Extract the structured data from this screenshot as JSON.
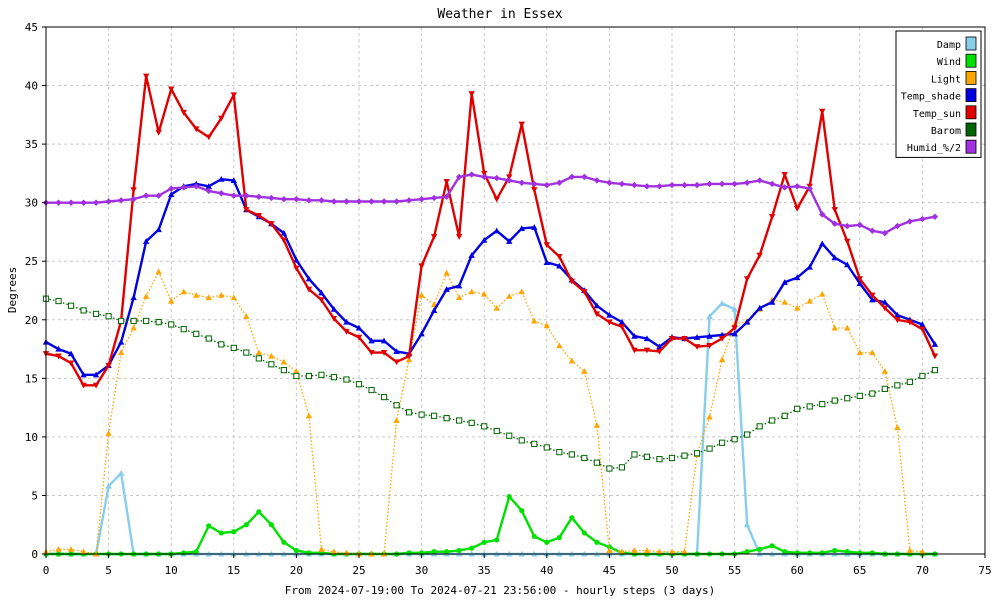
{
  "chart_data": {
    "type": "line",
    "title": "Weather in Essex",
    "xlabel": "From 2024-07-19:00 To 2024-07-21 23:56:00 - hourly steps (3 days)",
    "ylabel": "Degrees",
    "xlim": [
      0,
      75
    ],
    "ylim": [
      0,
      45
    ],
    "xticks": [
      0,
      5,
      10,
      15,
      20,
      25,
      30,
      35,
      40,
      45,
      50,
      55,
      60,
      65,
      70,
      75
    ],
    "yticks": [
      0,
      5,
      10,
      15,
      20,
      25,
      30,
      35,
      40,
      45
    ],
    "grid": true,
    "legend_position": "top-right",
    "series": [
      {
        "name": "Damp",
        "color": "#87ceeb",
        "marker": "triangle",
        "style": "solid",
        "values": [
          0,
          0,
          0,
          0,
          0,
          5.8,
          6.9,
          0,
          0,
          0,
          0,
          0,
          0,
          0,
          0,
          0,
          0,
          0,
          0,
          0,
          0,
          0,
          0,
          0,
          0,
          0,
          0,
          0,
          0,
          0,
          0,
          0,
          0,
          0,
          0,
          0,
          0,
          0,
          0,
          0,
          0,
          0,
          0,
          0,
          0,
          0,
          0,
          0,
          0,
          0,
          0,
          0,
          0,
          20.3,
          21.4,
          20.9,
          2.5,
          0,
          0,
          0,
          0,
          0,
          0,
          0,
          0,
          0,
          0,
          0,
          0,
          0,
          0,
          0
        ]
      },
      {
        "name": "Wind",
        "color": "#00e000",
        "marker": "circle",
        "style": "solid",
        "values": [
          0,
          0,
          0,
          0,
          0,
          0,
          0,
          0,
          0,
          0,
          0,
          0.1,
          0.2,
          2.4,
          1.8,
          1.9,
          2.5,
          3.6,
          2.5,
          1.0,
          0.3,
          0.1,
          0.1,
          0,
          0,
          0,
          0,
          0,
          0,
          0.1,
          0.1,
          0.2,
          0.2,
          0.3,
          0.5,
          1.0,
          1.2,
          4.9,
          3.7,
          1.5,
          1.0,
          1.4,
          3.1,
          1.8,
          1.0,
          0.6,
          0.1,
          0,
          0,
          0,
          0,
          0,
          0,
          0,
          0,
          0,
          0.2,
          0.4,
          0.7,
          0.2,
          0.1,
          0.1,
          0.1,
          0.3,
          0.2,
          0.1,
          0.1,
          0,
          0,
          0,
          0,
          0
        ]
      },
      {
        "name": "Light",
        "color": "#ffa500",
        "marker": "triangle",
        "style": "dotted",
        "values": [
          0.2,
          0.4,
          0.4,
          0.2,
          0,
          10.3,
          17.2,
          19.3,
          22.0,
          24.1,
          21.6,
          22.4,
          22.1,
          21.9,
          22.1,
          21.9,
          20.3,
          17.2,
          16.9,
          16.4,
          15.6,
          11.8,
          0.4,
          0.2,
          0.1,
          0,
          0,
          0,
          11.4,
          16.6,
          22.1,
          21.3,
          24.0,
          21.9,
          22.4,
          22.2,
          21.0,
          22.0,
          22.4,
          19.9,
          19.5,
          17.8,
          16.5,
          15.6,
          11.0,
          0.3,
          0.2,
          0.3,
          0.3,
          0.2,
          0.2,
          0.2,
          8.5,
          11.7,
          16.6,
          19.6,
          19.9,
          20.9,
          21.7,
          21.5,
          21.0,
          21.6,
          22.2,
          19.3,
          19.3,
          17.2,
          17.2,
          15.6,
          10.8,
          0.3,
          0.2
        ]
      },
      {
        "name": "Temp_shade",
        "color": "#0000e0",
        "marker": "triangle",
        "style": "solid",
        "values": [
          18.1,
          17.5,
          17.1,
          15.3,
          15.3,
          16.1,
          18.1,
          21.9,
          26.7,
          27.7,
          30.7,
          31.4,
          31.6,
          31.4,
          32.0,
          31.9,
          29.4,
          28.8,
          28.2,
          27.4,
          25.1,
          23.5,
          22.3,
          20.9,
          19.8,
          19.3,
          18.2,
          18.2,
          17.3,
          17.1,
          18.8,
          20.8,
          22.6,
          22.9,
          25.5,
          26.8,
          27.6,
          26.7,
          27.8,
          27.9,
          24.9,
          24.6,
          23.4,
          22.5,
          21.2,
          20.4,
          19.8,
          18.6,
          18.4,
          17.7,
          18.5,
          18.4,
          18.5,
          18.6,
          18.7,
          18.8,
          19.8,
          21.0,
          21.5,
          23.2,
          23.6,
          24.5,
          26.5,
          25.3,
          24.7,
          23.1,
          21.7,
          21.5,
          20.4,
          20.0,
          19.6,
          17.9
        ]
      },
      {
        "name": "Temp_sun",
        "color": "#e00000",
        "marker": "triangle-down",
        "style": "solid",
        "values": [
          17.1,
          16.9,
          16.3,
          14.4,
          14.4,
          16.1,
          19.9,
          31.1,
          40.8,
          36.0,
          39.7,
          37.7,
          36.3,
          35.6,
          37.2,
          39.2,
          29.4,
          28.9,
          28.2,
          26.8,
          24.4,
          22.6,
          21.7,
          20.1,
          19.0,
          18.5,
          17.2,
          17.2,
          16.4,
          16.9,
          24.6,
          27.1,
          31.8,
          27.1,
          39.3,
          32.5,
          30.3,
          32.2,
          36.7,
          31.1,
          26.4,
          25.4,
          23.3,
          22.4,
          20.5,
          19.8,
          19.4,
          17.4,
          17.4,
          17.3,
          18.4,
          18.4,
          17.7,
          17.8,
          18.4,
          19.3,
          23.5,
          25.5,
          28.8,
          32.4,
          29.5,
          31.4,
          37.8,
          29.4,
          26.7,
          23.5,
          22.1,
          21.0,
          20.0,
          19.8,
          19.2,
          16.9
        ]
      },
      {
        "name": "Barom",
        "color": "#006400",
        "marker": "square",
        "style": "dotted",
        "values": [
          21.8,
          21.6,
          21.2,
          20.8,
          20.5,
          20.3,
          19.9,
          19.9,
          19.9,
          19.8,
          19.6,
          19.2,
          18.8,
          18.4,
          17.9,
          17.6,
          17.2,
          16.7,
          16.2,
          15.7,
          15.2,
          15.2,
          15.3,
          15.1,
          14.9,
          14.5,
          14.0,
          13.4,
          12.7,
          12.1,
          11.9,
          11.8,
          11.6,
          11.4,
          11.2,
          10.9,
          10.5,
          10.1,
          9.7,
          9.4,
          9.1,
          8.7,
          8.5,
          8.2,
          7.8,
          7.3,
          7.4,
          8.5,
          8.3,
          8.1,
          8.2,
          8.4,
          8.6,
          9.0,
          9.5,
          9.8,
          10.2,
          10.9,
          11.4,
          11.8,
          12.4,
          12.6,
          12.8,
          13.1,
          13.3,
          13.5,
          13.7,
          14.1,
          14.4,
          14.7,
          15.2,
          15.7
        ]
      },
      {
        "name": "Humid_%/2",
        "color": "#a030e0",
        "marker": "diamond",
        "style": "solid",
        "values": [
          30.0,
          30.0,
          30.0,
          30.0,
          30.0,
          30.1,
          30.2,
          30.3,
          30.6,
          30.6,
          31.2,
          31.3,
          31.4,
          31.0,
          30.8,
          30.6,
          30.6,
          30.5,
          30.4,
          30.3,
          30.3,
          30.2,
          30.2,
          30.1,
          30.1,
          30.1,
          30.1,
          30.1,
          30.1,
          30.2,
          30.3,
          30.4,
          30.5,
          32.2,
          32.4,
          32.2,
          32.1,
          31.9,
          31.7,
          31.6,
          31.5,
          31.7,
          32.2,
          32.2,
          31.9,
          31.7,
          31.6,
          31.5,
          31.4,
          31.4,
          31.5,
          31.5,
          31.5,
          31.6,
          31.6,
          31.6,
          31.7,
          31.9,
          31.6,
          31.3,
          31.4,
          31.2,
          29.0,
          28.2,
          28.0,
          28.1,
          27.6,
          27.4,
          28.0,
          28.4,
          28.6,
          28.8
        ]
      }
    ]
  }
}
